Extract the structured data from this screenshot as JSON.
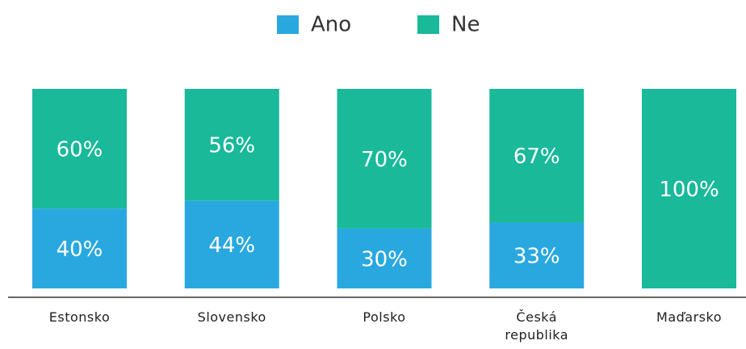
{
  "chart_data": {
    "type": "stacked-bar",
    "categories": [
      "Estonsko",
      "Slovensko",
      "Polsko",
      "Česká republika",
      "Maďarsko"
    ],
    "series": [
      {
        "name": "Ano",
        "color": "#29a8e0",
        "values": [
          40,
          44,
          30,
          33,
          0
        ],
        "value_labels": [
          "40%",
          "44%",
          "30%",
          "33%",
          null
        ]
      },
      {
        "name": "Ne",
        "color": "#19b99a",
        "values": [
          60,
          56,
          70,
          67,
          100
        ],
        "value_labels": [
          "60%",
          "56%",
          "70%",
          "67%",
          "100%"
        ]
      }
    ],
    "legend": "top"
  }
}
